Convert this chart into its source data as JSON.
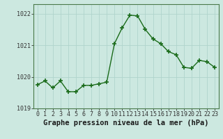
{
  "x": [
    0,
    1,
    2,
    3,
    4,
    5,
    6,
    7,
    8,
    9,
    10,
    11,
    12,
    13,
    14,
    15,
    16,
    17,
    18,
    19,
    20,
    21,
    22,
    23
  ],
  "y": [
    1019.75,
    1019.87,
    1019.65,
    1019.87,
    1019.53,
    1019.53,
    1019.73,
    1019.73,
    1019.78,
    1019.83,
    1021.05,
    1021.55,
    1021.95,
    1021.93,
    1021.5,
    1021.2,
    1021.05,
    1020.8,
    1020.7,
    1020.3,
    1020.27,
    1020.52,
    1020.48,
    1020.3
  ],
  "line_color": "#1a6b1a",
  "marker": "+",
  "marker_size": 4,
  "line_width": 1.0,
  "bg_color": "#cce8e0",
  "grid_color": "#b0d4cc",
  "xlabel": "Graphe pression niveau de la mer (hPa)",
  "xlabel_fontsize": 7.5,
  "ylim": [
    1019.0,
    1022.3
  ],
  "yticks": [
    1019,
    1020,
    1021,
    1022
  ],
  "xticks": [
    0,
    1,
    2,
    3,
    4,
    5,
    6,
    7,
    8,
    9,
    10,
    11,
    12,
    13,
    14,
    15,
    16,
    17,
    18,
    19,
    20,
    21,
    22,
    23
  ],
  "tick_fontsize": 6,
  "border_color": "#4a7a4a"
}
